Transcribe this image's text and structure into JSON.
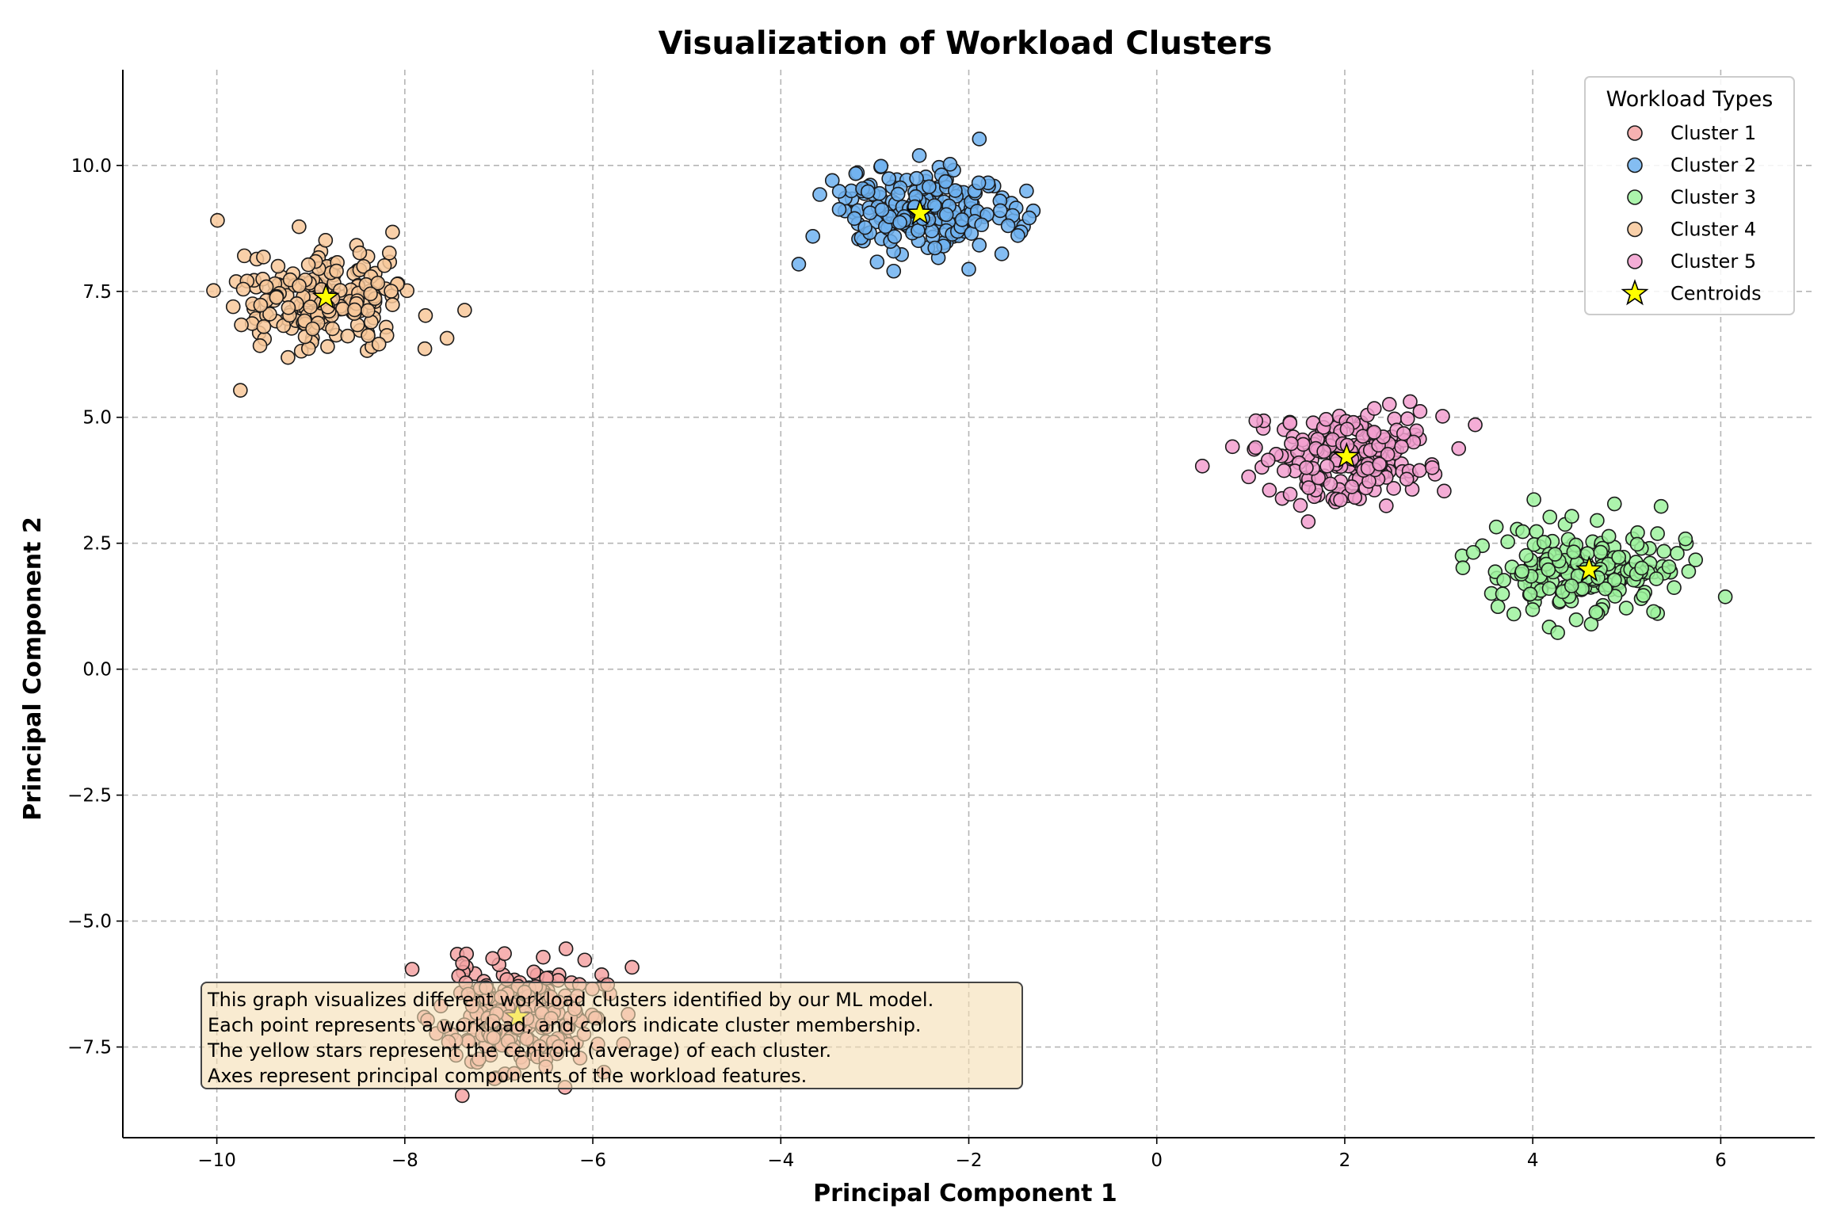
{
  "chart_data": {
    "type": "scatter",
    "title": "Visualization of Workload Clusters",
    "xlabel": "Principal Component 1",
    "ylabel": "Principal Component 2",
    "xlim": [
      -11,
      7
    ],
    "ylim": [
      -9.3,
      11.9
    ],
    "x_ticks": [
      -10,
      -8,
      -6,
      -4,
      -2,
      0,
      2,
      4,
      6
    ],
    "y_ticks": [
      -7.5,
      -5.0,
      -2.5,
      0.0,
      2.5,
      5.0,
      7.5,
      10.0
    ],
    "x_tick_labels": [
      "−10",
      "−8",
      "−6",
      "−4",
      "−2",
      "0",
      "2",
      "4",
      "6"
    ],
    "y_tick_labels": [
      "−7.5",
      "−5.0",
      "−2.5",
      "0.0",
      "2.5",
      "5.0",
      "7.5",
      "10.0"
    ],
    "grid": true,
    "legend": {
      "title": "Workload Types",
      "placement": "top-right",
      "entries": [
        "Cluster 1",
        "Cluster 2",
        "Cluster 3",
        "Cluster 4",
        "Cluster 5",
        "Centroids"
      ]
    },
    "series": [
      {
        "name": "Cluster 1",
        "color": "#f4a3a3",
        "center": [
          -6.8,
          -6.9
        ],
        "spread": [
          0.42,
          0.55
        ],
        "count": 200,
        "seed": 11
      },
      {
        "name": "Cluster 2",
        "color": "#6fb1f0",
        "center": [
          -2.52,
          9.05
        ],
        "spread": [
          0.5,
          0.45
        ],
        "count": 200,
        "seed": 23
      },
      {
        "name": "Cluster 3",
        "color": "#9ef29e",
        "center": [
          4.6,
          1.97
        ],
        "spread": [
          0.5,
          0.45
        ],
        "count": 200,
        "seed": 37
      },
      {
        "name": "Cluster 4",
        "color": "#f8c89a",
        "center": [
          -8.84,
          7.38
        ],
        "spread": [
          0.45,
          0.55
        ],
        "count": 200,
        "seed": 41
      },
      {
        "name": "Cluster 5",
        "color": "#f29fcf",
        "center": [
          2.02,
          4.22
        ],
        "spread": [
          0.45,
          0.45
        ],
        "count": 200,
        "seed": 53
      }
    ],
    "centroids": {
      "name": "Centroids",
      "color": "#ffff00",
      "points": [
        [
          -6.8,
          -6.9
        ],
        [
          -2.52,
          9.05
        ],
        [
          4.6,
          1.97
        ],
        [
          -8.84,
          7.38
        ],
        [
          2.02,
          4.22
        ]
      ]
    },
    "annotation": {
      "lines": [
        "This graph visualizes different workload clusters identified by our ML model.",
        "Each point represents a workload, and colors indicate cluster membership.",
        "The yellow stars represent the centroid (average) of each cluster.",
        "Axes represent principal components of the workload features."
      ],
      "placement": "bottom-left",
      "background": "#f5deb3"
    }
  }
}
